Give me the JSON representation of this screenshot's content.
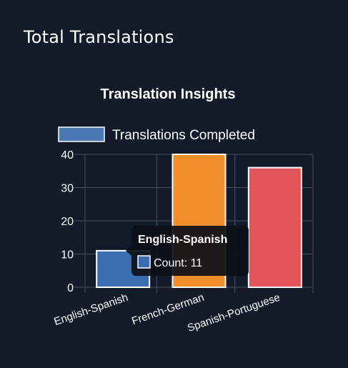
{
  "card": {
    "title": "Total Translations"
  },
  "chart_data": {
    "type": "bar",
    "title": "Translation Insights",
    "categories": [
      "English-Spanish",
      "French-German",
      "Spanish-Portuguese"
    ],
    "series": [
      {
        "name": "Translations Completed",
        "values": [
          11,
          40,
          36
        ],
        "colors": [
          "#3b6eb0",
          "#f18e2c",
          "#e0545a"
        ]
      }
    ],
    "legend_swatch_color": "#4a78b2",
    "ylim": [
      0,
      40
    ],
    "y_ticks": [
      0,
      10,
      20,
      30,
      40
    ],
    "grid": true,
    "legend_position": "top",
    "tooltip": {
      "visible": true,
      "title": "English-Spanish",
      "label": "Count: 11",
      "category_index": 0
    }
  },
  "colors": {
    "background": "#131b2b",
    "text": "#ffffff",
    "grid": "#4a4f58",
    "bar_border": "#ffffff",
    "tooltip_bg": "#0b0f17"
  }
}
